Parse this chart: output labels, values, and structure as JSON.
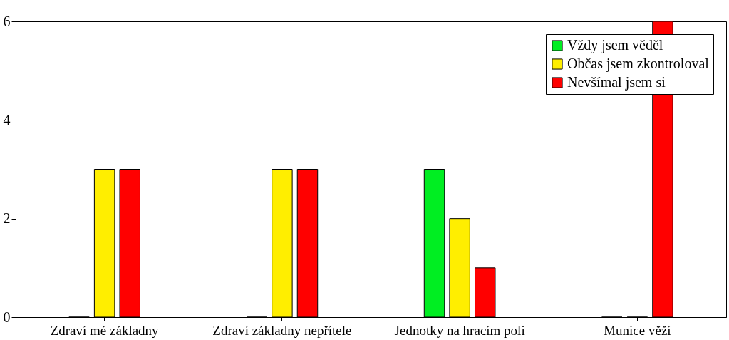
{
  "chart_data": {
    "type": "bar",
    "categories": [
      "Zdraví mé základny",
      "Zdraví základny nepřítele",
      "Jednotky na hracím poli",
      "Munice věží"
    ],
    "series": [
      {
        "name": "Vždy jsem věděl",
        "color": "#00ee22",
        "values": [
          0,
          0,
          3,
          0
        ]
      },
      {
        "name": "Občas jsem zkontroloval",
        "color": "#ffee00",
        "values": [
          3,
          3,
          2,
          0
        ]
      },
      {
        "name": "Nevšímal jsem si",
        "color": "#ff0000",
        "values": [
          3,
          3,
          1,
          6
        ]
      }
    ],
    "ylim": [
      0,
      6
    ],
    "yticks": [
      0,
      2,
      4,
      6
    ],
    "grid": false,
    "legend": "top right"
  }
}
